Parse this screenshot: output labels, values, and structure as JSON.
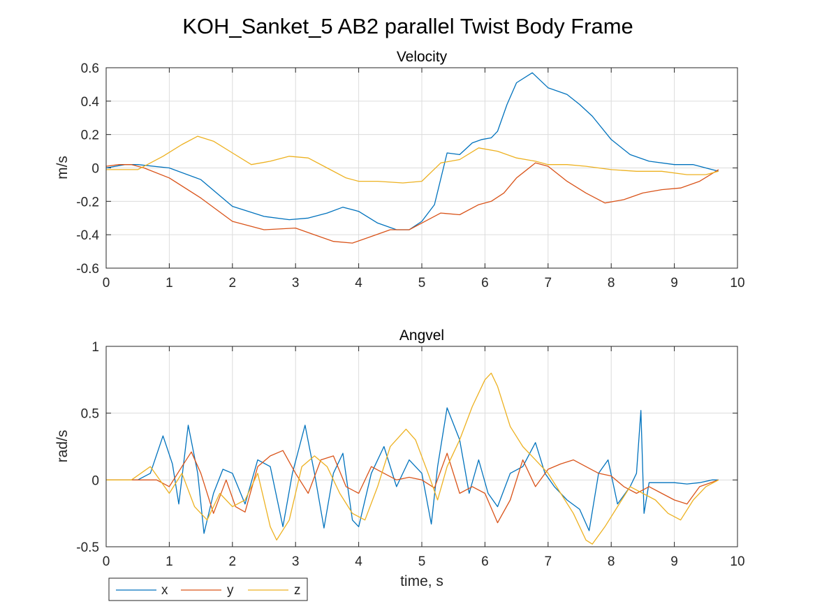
{
  "figure": {
    "title": "KOH_Sanket_5 AB2 parallel Twist Body Frame"
  },
  "legend": {
    "placement": "bottom-left",
    "entries": [
      {
        "name": "x",
        "color": "#0072BD"
      },
      {
        "name": "y",
        "color": "#D95319"
      },
      {
        "name": "z",
        "color": "#EDB120"
      }
    ]
  },
  "chart_data": [
    {
      "type": "line",
      "title": "Velocity",
      "xlabel": "",
      "ylabel": "m/s",
      "xlim": [
        0,
        10
      ],
      "ylim": [
        -0.6,
        0.6
      ],
      "xticks": [
        "0",
        "1",
        "2",
        "3",
        "4",
        "5",
        "6",
        "7",
        "8",
        "9",
        "10"
      ],
      "yticks": [
        "0.6",
        "0.4",
        "0.2",
        "0",
        "-0.2",
        "-0.4",
        "-0.6"
      ],
      "grid": true,
      "series": [
        {
          "name": "x",
          "color": "#0072BD",
          "x": [
            0,
            0.3,
            0.5,
            1.0,
            1.5,
            2.0,
            2.5,
            2.9,
            3.2,
            3.5,
            3.75,
            4.0,
            4.3,
            4.6,
            4.8,
            5.0,
            5.2,
            5.4,
            5.6,
            5.8,
            5.95,
            6.1,
            6.2,
            6.35,
            6.5,
            6.75,
            7.0,
            7.3,
            7.5,
            7.7,
            8.0,
            8.3,
            8.6,
            9.0,
            9.3,
            9.6,
            9.7
          ],
          "y": [
            0.0,
            0.02,
            0.02,
            0.0,
            -0.07,
            -0.23,
            -0.29,
            -0.31,
            -0.3,
            -0.27,
            -0.235,
            -0.26,
            -0.33,
            -0.37,
            -0.37,
            -0.32,
            -0.22,
            0.09,
            0.08,
            0.15,
            0.17,
            0.18,
            0.22,
            0.38,
            0.51,
            0.57,
            0.48,
            0.44,
            0.38,
            0.31,
            0.17,
            0.08,
            0.04,
            0.02,
            0.02,
            -0.01,
            -0.02
          ]
        },
        {
          "name": "y",
          "color": "#D95319",
          "x": [
            0,
            0.2,
            0.4,
            0.6,
            1.0,
            1.5,
            2.0,
            2.5,
            3.0,
            3.3,
            3.6,
            3.9,
            4.2,
            4.5,
            4.8,
            5.0,
            5.3,
            5.6,
            5.9,
            6.1,
            6.3,
            6.5,
            6.8,
            7.0,
            7.3,
            7.6,
            7.9,
            8.2,
            8.5,
            8.8,
            9.1,
            9.4,
            9.7
          ],
          "y": [
            0.01,
            0.02,
            0.02,
            0.0,
            -0.06,
            -0.18,
            -0.32,
            -0.37,
            -0.36,
            -0.4,
            -0.44,
            -0.45,
            -0.41,
            -0.37,
            -0.37,
            -0.33,
            -0.27,
            -0.28,
            -0.22,
            -0.2,
            -0.15,
            -0.06,
            0.03,
            0.01,
            -0.08,
            -0.15,
            -0.21,
            -0.19,
            -0.15,
            -0.13,
            -0.12,
            -0.08,
            -0.01
          ]
        },
        {
          "name": "z",
          "color": "#EDB120",
          "x": [
            0,
            0.2,
            0.5,
            0.9,
            1.2,
            1.45,
            1.7,
            2.0,
            2.3,
            2.6,
            2.9,
            3.2,
            3.5,
            3.8,
            4.0,
            4.3,
            4.7,
            5.0,
            5.3,
            5.6,
            5.9,
            6.2,
            6.5,
            6.8,
            7.0,
            7.3,
            7.6,
            8.0,
            8.4,
            8.8,
            9.2,
            9.5,
            9.7
          ],
          "y": [
            -0.01,
            -0.01,
            -0.01,
            0.07,
            0.14,
            0.19,
            0.16,
            0.09,
            0.02,
            0.04,
            0.07,
            0.06,
            0.0,
            -0.06,
            -0.08,
            -0.08,
            -0.09,
            -0.08,
            0.03,
            0.05,
            0.12,
            0.1,
            0.06,
            0.04,
            0.02,
            0.02,
            0.01,
            -0.01,
            -0.02,
            -0.02,
            -0.04,
            -0.04,
            -0.02
          ]
        }
      ]
    },
    {
      "type": "line",
      "title": "Angvel",
      "xlabel": "time, s",
      "ylabel": "rad/s",
      "xlim": [
        0,
        10
      ],
      "ylim": [
        -0.5,
        1
      ],
      "xticks": [
        "0",
        "1",
        "2",
        "3",
        "4",
        "5",
        "6",
        "7",
        "8",
        "9",
        "10"
      ],
      "yticks": [
        "1",
        "0.5",
        "0",
        "-0.5"
      ],
      "grid": true,
      "series": [
        {
          "name": "x",
          "color": "#0072BD",
          "x": [
            0,
            0.5,
            0.7,
            0.9,
            1.05,
            1.15,
            1.3,
            1.45,
            1.55,
            1.7,
            1.85,
            2.0,
            2.2,
            2.4,
            2.6,
            2.8,
            2.95,
            3.15,
            3.3,
            3.45,
            3.6,
            3.75,
            3.9,
            4.0,
            4.2,
            4.4,
            4.6,
            4.8,
            5.0,
            5.15,
            5.25,
            5.4,
            5.6,
            5.75,
            5.9,
            6.05,
            6.2,
            6.4,
            6.6,
            6.8,
            6.95,
            7.1,
            7.3,
            7.5,
            7.65,
            7.8,
            7.95,
            8.1,
            8.3,
            8.4,
            8.47,
            8.52,
            8.6,
            8.8,
            9.0,
            9.2,
            9.4,
            9.6,
            9.7
          ],
          "y": [
            0,
            0,
            0.05,
            0.33,
            0.12,
            -0.18,
            0.41,
            0.05,
            -0.4,
            -0.1,
            0.08,
            0.05,
            -0.18,
            0.15,
            0.1,
            -0.35,
            0.05,
            0.41,
            0.05,
            -0.36,
            0.05,
            0.2,
            -0.3,
            -0.35,
            0.05,
            0.25,
            -0.05,
            0.15,
            0.05,
            -0.33,
            0.1,
            0.54,
            0.3,
            -0.1,
            0.15,
            -0.1,
            -0.2,
            0.05,
            0.1,
            0.28,
            0.05,
            -0.05,
            -0.15,
            -0.22,
            -0.38,
            0.05,
            0.15,
            -0.18,
            -0.05,
            0.05,
            0.52,
            -0.25,
            -0.02,
            -0.02,
            -0.02,
            -0.03,
            -0.02,
            0,
            0
          ]
        },
        {
          "name": "y",
          "color": "#D95319",
          "x": [
            0,
            0.5,
            0.8,
            1.0,
            1.2,
            1.35,
            1.5,
            1.7,
            1.9,
            2.05,
            2.2,
            2.4,
            2.6,
            2.8,
            3.0,
            3.2,
            3.4,
            3.6,
            3.8,
            4.0,
            4.2,
            4.4,
            4.6,
            4.8,
            5.0,
            5.2,
            5.4,
            5.6,
            5.8,
            6.0,
            6.2,
            6.4,
            6.6,
            6.8,
            7.0,
            7.2,
            7.4,
            7.6,
            7.8,
            8.0,
            8.2,
            8.4,
            8.6,
            8.8,
            9.0,
            9.2,
            9.4,
            9.7
          ],
          "y": [
            0,
            0,
            0,
            -0.05,
            0.1,
            0.21,
            0.05,
            -0.25,
            0.0,
            -0.2,
            -0.24,
            0.1,
            0.18,
            0.22,
            0.05,
            -0.1,
            0.15,
            0.18,
            -0.05,
            -0.1,
            0.1,
            0.05,
            0.0,
            0.02,
            0.0,
            -0.06,
            0.2,
            -0.1,
            -0.05,
            -0.1,
            -0.32,
            -0.15,
            0.15,
            -0.05,
            0.08,
            0.12,
            0.15,
            0.1,
            0.05,
            0.03,
            -0.05,
            -0.1,
            -0.05,
            -0.1,
            -0.15,
            -0.18,
            -0.05,
            0
          ]
        },
        {
          "name": "z",
          "color": "#EDB120",
          "x": [
            0,
            0.4,
            0.7,
            0.85,
            1.0,
            1.2,
            1.4,
            1.6,
            1.8,
            2.0,
            2.2,
            2.4,
            2.6,
            2.7,
            2.9,
            3.1,
            3.3,
            3.5,
            3.7,
            3.9,
            4.1,
            4.3,
            4.5,
            4.75,
            4.9,
            5.1,
            5.25,
            5.4,
            5.6,
            5.8,
            6.0,
            6.1,
            6.2,
            6.4,
            6.6,
            6.8,
            7.0,
            7.2,
            7.4,
            7.6,
            7.7,
            7.9,
            8.1,
            8.3,
            8.5,
            8.7,
            8.9,
            9.1,
            9.3,
            9.5,
            9.7
          ],
          "y": [
            0,
            0,
            0.1,
            0.0,
            -0.1,
            0.05,
            -0.2,
            -0.3,
            -0.1,
            -0.2,
            -0.15,
            0.05,
            -0.35,
            -0.45,
            -0.3,
            0.1,
            0.18,
            0.1,
            -0.1,
            -0.25,
            -0.3,
            -0.05,
            0.25,
            0.38,
            0.3,
            0.05,
            -0.15,
            0.1,
            0.3,
            0.55,
            0.75,
            0.8,
            0.7,
            0.4,
            0.25,
            0.15,
            0.05,
            -0.1,
            -0.25,
            -0.45,
            -0.48,
            -0.35,
            -0.2,
            -0.05,
            -0.1,
            -0.15,
            -0.25,
            -0.3,
            -0.15,
            -0.05,
            0
          ]
        }
      ]
    }
  ]
}
